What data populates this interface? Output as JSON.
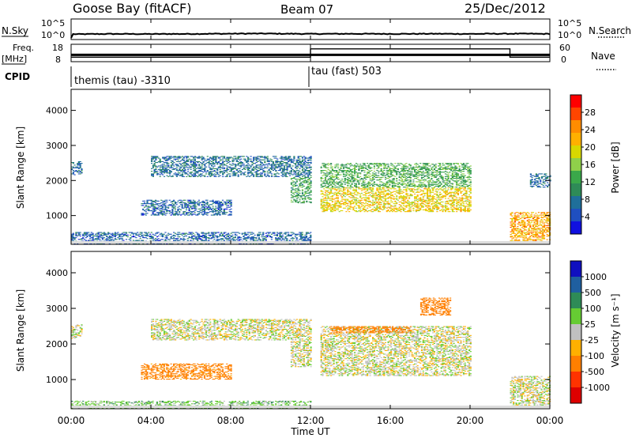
{
  "header": {
    "station": "Goose Bay (fitACF)",
    "beam": "Beam 07",
    "date": "25/Dec/2012"
  },
  "strips": {
    "nsky_label": "N.Sky",
    "nsky_ticks": [
      "10^5",
      "10^0"
    ],
    "nsearch_label": "N.Search",
    "nsearch_ticks": [
      "10^5",
      "10^0"
    ],
    "freq_label": "Freq.",
    "freq_unit": "[MHz]",
    "freq_ticks": [
      "18",
      "8"
    ],
    "nave_label": "Nave",
    "nave_ticks": [
      "60",
      "0"
    ],
    "cpid_label": "CPID",
    "cpid_1": "themis (tau) -3310",
    "cpid_2": "tau (fast) 503"
  },
  "power_scale": {
    "label": "Power [dB]",
    "ticks": [
      "28",
      "24",
      "20",
      "16",
      "12",
      "8",
      "4"
    ],
    "colors": [
      "#ff0000",
      "#ff4500",
      "#ff8c00",
      "#ffb000",
      "#d8d800",
      "#8fd04a",
      "#3aa84a",
      "#2e8b57",
      "#1f6f9a",
      "#1f4fc0",
      "#1010e0"
    ]
  },
  "velocity_scale": {
    "label": "Velocity [m s⁻¹]",
    "ticks": [
      "1000",
      "500",
      "100",
      "25",
      "-25",
      "-100",
      "-500",
      "-1000"
    ],
    "colors": [
      "#1010c0",
      "#1f5fa0",
      "#2e8b57",
      "#66cc33",
      "#c0c0c0",
      "#ffb000",
      "#ff7f00",
      "#ff3300",
      "#dd0000"
    ]
  },
  "chart_data": [
    {
      "type": "line",
      "panel": "N.Sky / N.Search",
      "x_unit": "hour UT",
      "y_scale": "log",
      "ylim": [
        1,
        100000
      ],
      "x": [
        0,
        0.1,
        0.5,
        2,
        4,
        6,
        8,
        9.5,
        12,
        14,
        16,
        18,
        20,
        22,
        24
      ],
      "values": [
        1,
        10,
        10,
        12,
        11,
        12,
        14,
        15,
        12,
        13,
        12,
        13,
        12,
        14,
        12
      ]
    },
    {
      "type": "line",
      "panel": "Freq. / Nave",
      "series": [
        {
          "name": "Freq.",
          "unit": "MHz",
          "x": [
            0,
            12,
            12,
            22,
            22,
            24
          ],
          "values": [
            10.5,
            10.5,
            16,
            16,
            10.5,
            10.5
          ]
        },
        {
          "name": "Nave",
          "x": [
            0,
            24
          ],
          "values": [
            12,
            12
          ]
        }
      ],
      "ylim": [
        8,
        18
      ]
    },
    {
      "type": "heatmap",
      "panel": "Power",
      "xlabel": "Time UT",
      "ylabel": "Slant Range [km]",
      "xlim": [
        0,
        24
      ],
      "ylim": [
        180,
        4600
      ],
      "x_ticks": [
        "00:00",
        "04:00",
        "08:00",
        "12:00",
        "16:00",
        "20:00",
        "00:00"
      ],
      "y_ticks": [
        1000,
        2000,
        3000,
        4000
      ],
      "colorbar": "Power [dB]",
      "regions": [
        {
          "t": [
            0,
            0.5
          ],
          "r": [
            2150,
            2550
          ],
          "value": 6
        },
        {
          "t": [
            4,
            12
          ],
          "r": [
            2100,
            2700
          ],
          "value": 6
        },
        {
          "t": [
            11,
            12
          ],
          "r": [
            1350,
            2100
          ],
          "value": 11
        },
        {
          "t": [
            3.5,
            8
          ],
          "r": [
            1000,
            1450
          ],
          "value": 5
        },
        {
          "t": [
            12.5,
            20
          ],
          "r": [
            1100,
            1800
          ],
          "value": 19
        },
        {
          "t": [
            12.5,
            20
          ],
          "r": [
            1800,
            2500
          ],
          "value": 12
        },
        {
          "t": [
            22,
            24
          ],
          "r": [
            250,
            1100
          ],
          "value": 22
        },
        {
          "t": [
            0,
            12
          ],
          "r": [
            180,
            520
          ],
          "value": 5
        },
        {
          "t": [
            23,
            24
          ],
          "r": [
            1800,
            2200
          ],
          "value": 6
        }
      ]
    },
    {
      "type": "heatmap",
      "panel": "Velocity",
      "xlabel": "Time UT",
      "ylabel": "Slant Range [km]",
      "xlim": [
        0,
        24
      ],
      "ylim": [
        180,
        4600
      ],
      "x_ticks": [
        "00:00",
        "04:00",
        "08:00",
        "12:00",
        "16:00",
        "20:00",
        "00:00"
      ],
      "y_ticks": [
        1000,
        2000,
        3000,
        4000
      ],
      "colorbar": "Velocity [m s⁻¹]",
      "regions": [
        {
          "t": [
            0,
            0.5
          ],
          "r": [
            2150,
            2550
          ],
          "value": 0
        },
        {
          "t": [
            4,
            12
          ],
          "r": [
            2100,
            2700
          ],
          "value": 0
        },
        {
          "t": [
            11,
            12
          ],
          "r": [
            1350,
            2100
          ],
          "value": 0
        },
        {
          "t": [
            3.5,
            8
          ],
          "r": [
            1000,
            1450
          ],
          "value": -150
        },
        {
          "t": [
            12.5,
            20
          ],
          "r": [
            1100,
            2500
          ],
          "value": 0
        },
        {
          "t": [
            13,
            17
          ],
          "r": [
            2300,
            2500
          ],
          "value": -400
        },
        {
          "t": [
            17.5,
            19
          ],
          "r": [
            2800,
            3300
          ],
          "value": -400
        },
        {
          "t": [
            22,
            24
          ],
          "r": [
            250,
            1100
          ],
          "value": 0
        },
        {
          "t": [
            0,
            12
          ],
          "r": [
            180,
            400
          ],
          "value": 60
        }
      ]
    }
  ]
}
